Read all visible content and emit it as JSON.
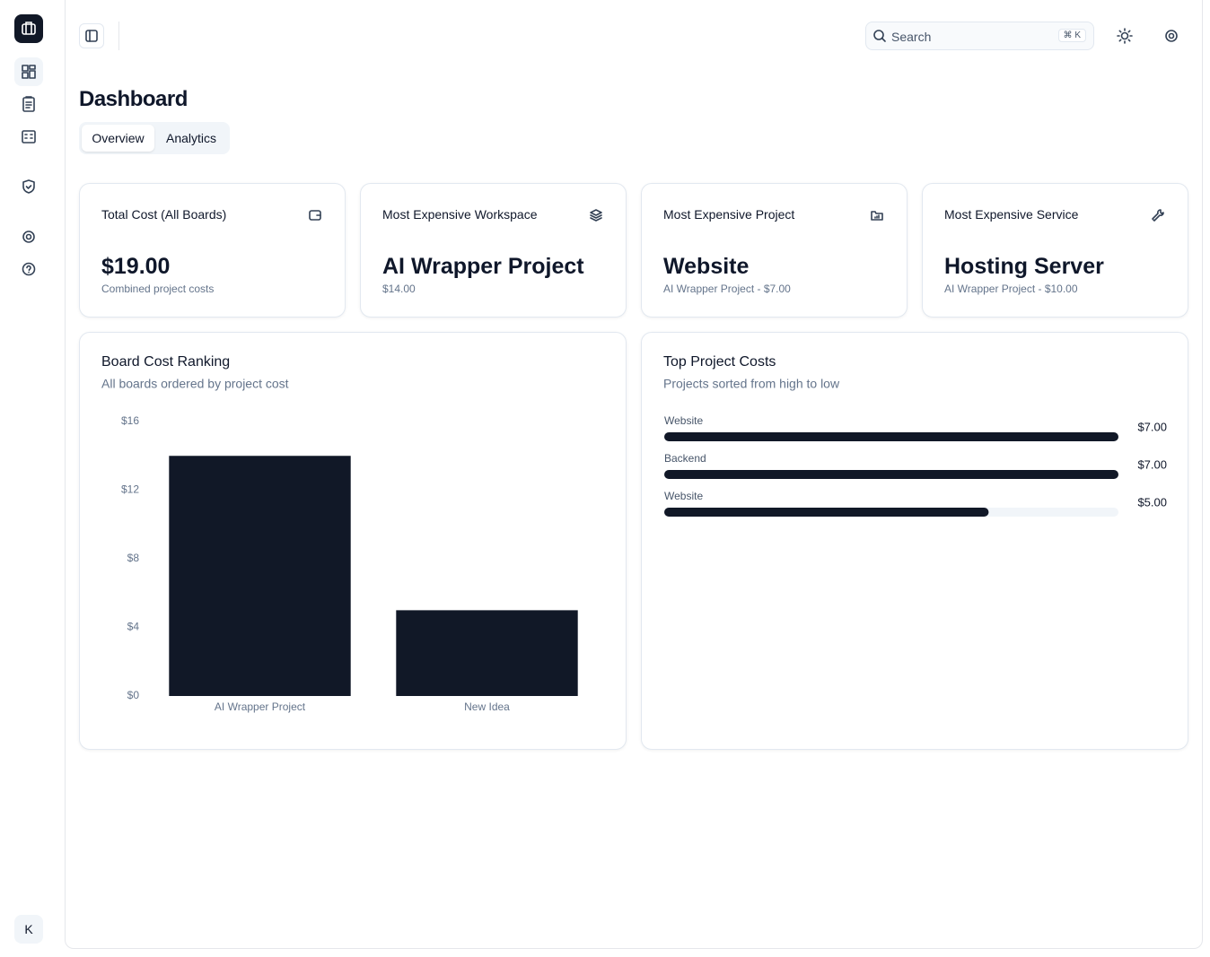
{
  "sidebar": {
    "avatar": "K"
  },
  "header": {
    "search": "Search",
    "shortcut": "⌘ K"
  },
  "page": {
    "title": "Dashboard",
    "tabs": [
      "Overview",
      "Analytics"
    ]
  },
  "cards": [
    {
      "title": "Total Cost (All Boards)",
      "value": "$19.00",
      "subtitle": "Combined project costs"
    },
    {
      "title": "Most Expensive Workspace",
      "value": "AI Wrapper Project",
      "subtitle": "$14.00"
    },
    {
      "title": "Most Expensive Project",
      "value": "Website",
      "subtitle": "AI Wrapper Project - $7.00"
    },
    {
      "title": "Most Expensive Service",
      "value": "Hosting Server",
      "subtitle": "AI Wrapper Project - $10.00"
    }
  ],
  "chart_data": [
    {
      "type": "bar",
      "title": "Board Cost Ranking",
      "subtitle": "All boards ordered by project cost",
      "categories": [
        "AI Wrapper Project",
        "New Idea"
      ],
      "values": [
        14,
        5
      ],
      "color": "#111827",
      "ylim": [
        0,
        16
      ],
      "yticks": [
        {
          "value": 0,
          "label": "$0"
        },
        {
          "value": 4,
          "label": "$4"
        },
        {
          "value": 8,
          "label": "$8"
        },
        {
          "value": 12,
          "label": "$12"
        },
        {
          "value": 16,
          "label": "$16"
        }
      ]
    },
    {
      "type": "hbar",
      "title": "Top Project Costs",
      "subtitle": "Projects sorted from high to low",
      "categories": [
        "Website",
        "Backend",
        "Website"
      ],
      "values": [
        7,
        7,
        5
      ],
      "value_labels": [
        "$7.00",
        "$7.00",
        "$5.00"
      ],
      "color": "#111827",
      "xlim": [
        0,
        7
      ]
    }
  ]
}
